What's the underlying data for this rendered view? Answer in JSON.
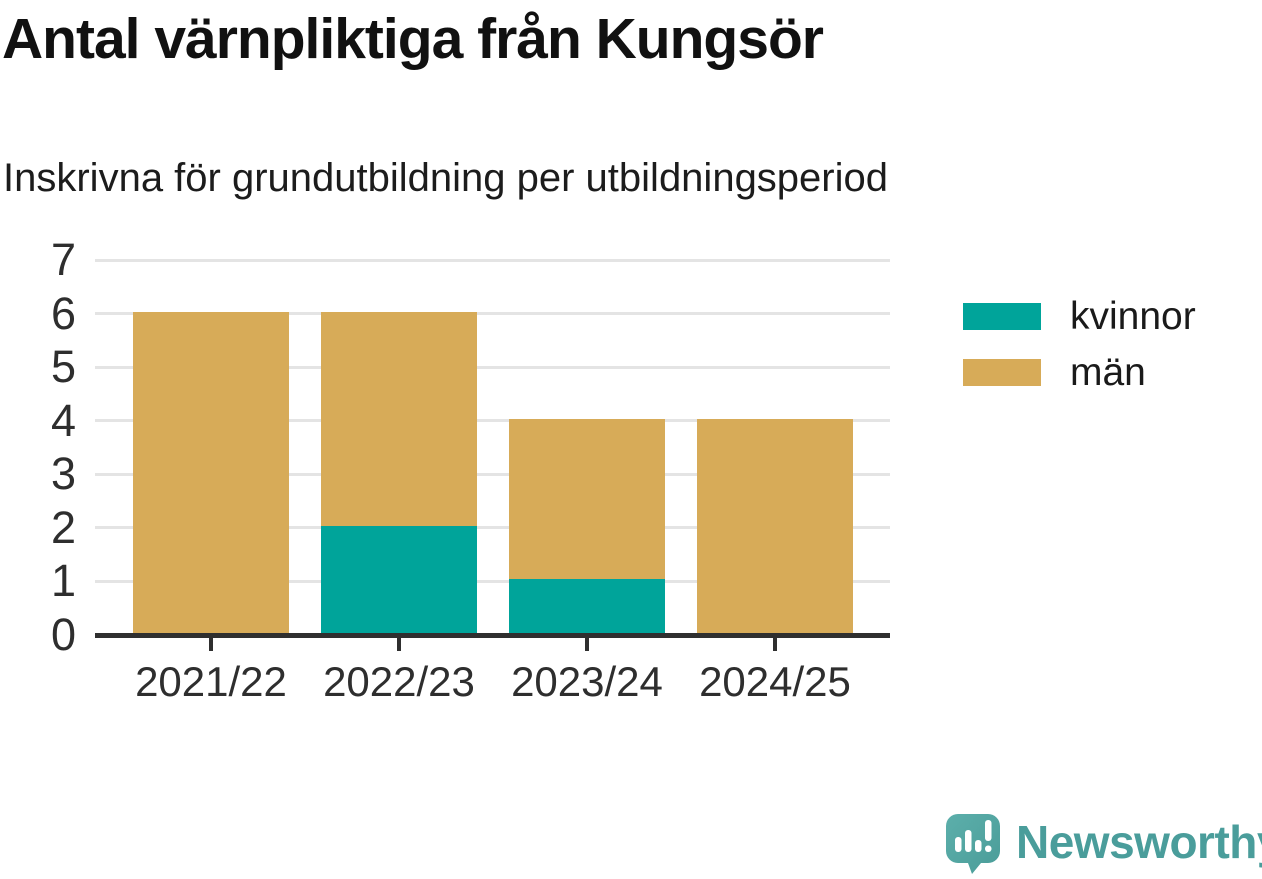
{
  "title": "Antal värnpliktiga från Kungsör",
  "subtitle": "Inskrivna för grundutbildning per utbildningsperiod",
  "colors": {
    "kvinnor": "#00a49a",
    "man": "#d7ab58",
    "grid": "#e4e4e4",
    "axis": "#2f2f2f",
    "text": "#1a1a1a",
    "brand_teal": "#4a9d9b"
  },
  "legend": {
    "items": [
      {
        "label": "kvinnor",
        "color": "#00a49a"
      },
      {
        "label": "män",
        "color": "#d7ab58"
      }
    ]
  },
  "branding": {
    "name": "Newsworthy",
    "logo_icon": "speech-bubble-bar-chart-exclamation-icon"
  },
  "chart_data": {
    "type": "bar",
    "stacked": true,
    "title": "Antal värnpliktiga från Kungsör",
    "subtitle": "Inskrivna för grundutbildning per utbildningsperiod",
    "categories": [
      "2021/22",
      "2022/23",
      "2023/24",
      "2024/25"
    ],
    "series": [
      {
        "name": "kvinnor",
        "color": "#00a49a",
        "values": [
          0,
          2,
          1,
          0
        ]
      },
      {
        "name": "män",
        "color": "#d7ab58",
        "values": [
          6,
          4,
          3,
          4
        ]
      }
    ],
    "totals": [
      6,
      6,
      4,
      4
    ],
    "xlabel": "",
    "ylabel": "",
    "ylim": [
      0,
      7
    ],
    "yticks": [
      0,
      1,
      2,
      3,
      4,
      5,
      6,
      7
    ],
    "grid": true,
    "legend_position": "right"
  }
}
